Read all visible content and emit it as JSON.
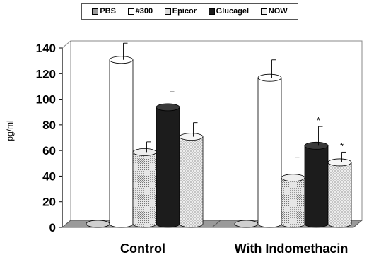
{
  "chart_data": {
    "type": "bar",
    "categories": [
      "Control",
      "With Indomethacin"
    ],
    "series": [
      {
        "name": "PBS",
        "values": [
          0,
          0
        ],
        "errors": [
          0,
          0
        ],
        "sig": [
          "",
          ""
        ],
        "color": "#8c8c8c"
      },
      {
        "name": "#300",
        "values": [
          128,
          114
        ],
        "errors": [
          13,
          14
        ],
        "sig": [
          "",
          ""
        ],
        "color": "#ffffff"
      },
      {
        "name": "Epicor",
        "values": [
          56,
          36
        ],
        "errors": [
          8,
          16
        ],
        "sig": [
          "",
          ""
        ],
        "color": "#d4d4d4"
      },
      {
        "name": "Glucagel",
        "values": [
          91,
          61
        ],
        "errors": [
          12,
          15
        ],
        "sig": [
          "",
          "*"
        ],
        "color": "#1a1a1a"
      },
      {
        "name": "NOW",
        "values": [
          68,
          48
        ],
        "errors": [
          11,
          8
        ],
        "sig": [
          "",
          "*"
        ],
        "color": "#e3e3e3"
      }
    ],
    "ylabel": "pg/ml",
    "xlabel": "",
    "ylim": [
      0,
      140
    ],
    "yticks": [
      "0",
      "20",
      "40",
      "60",
      "80",
      "100",
      "120",
      "140"
    ],
    "grid": false,
    "legend": "top"
  }
}
